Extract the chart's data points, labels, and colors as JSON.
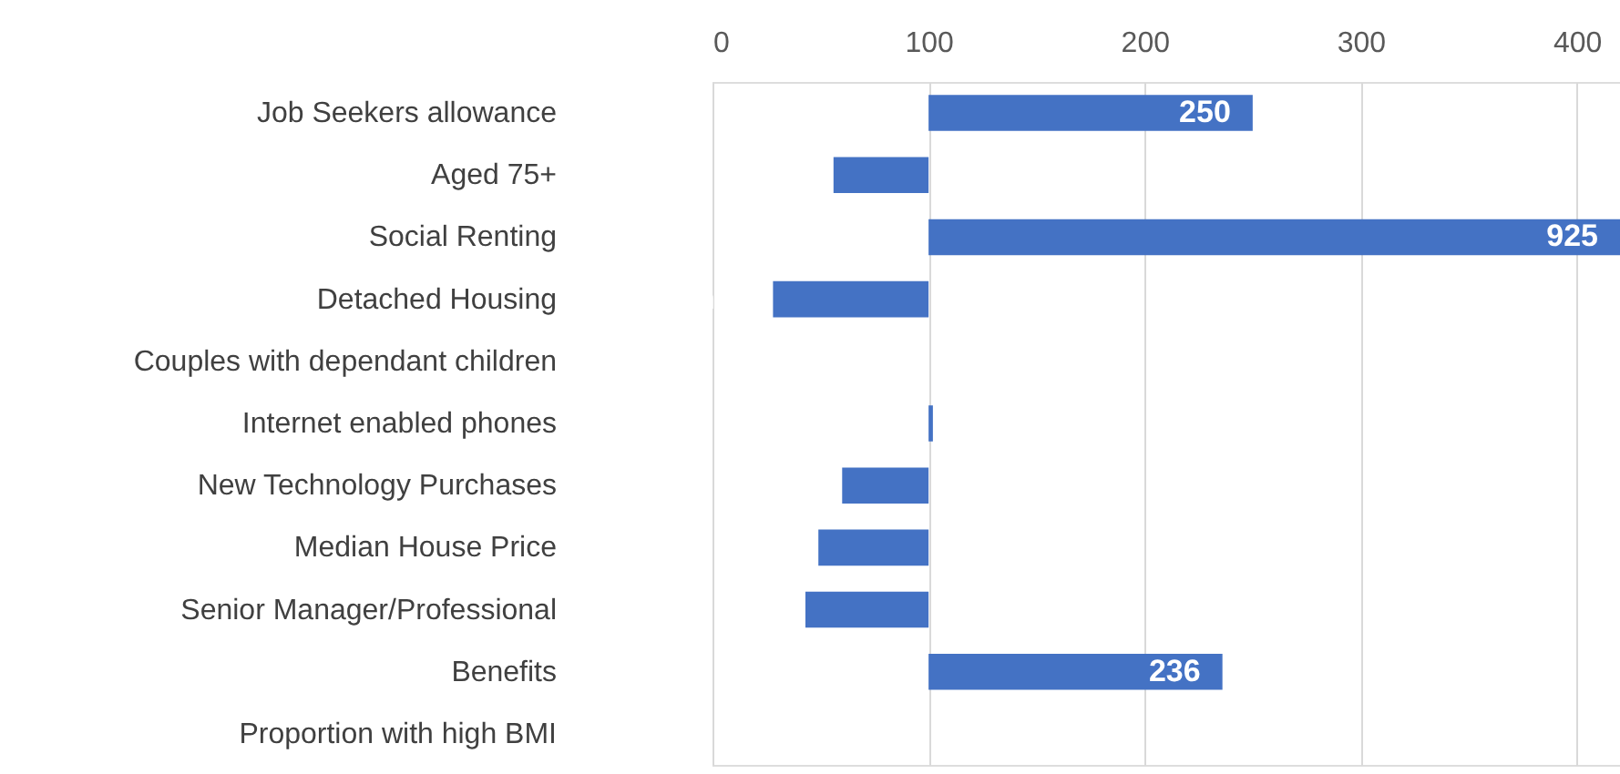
{
  "chart_data": {
    "type": "bar",
    "orientation": "horizontal",
    "categories": [
      "Job Seekers allowance",
      "Aged 75+",
      "Social Renting",
      "Detached Housing",
      "Couples with dependant children",
      "Internet enabled phones",
      "New Technology Purchases",
      "Median House Price",
      "Senior Manager/Professional",
      "Benefits",
      "Proportion with high BMI"
    ],
    "base": [
      100,
      100,
      100,
      100,
      null,
      100,
      100,
      100,
      100,
      100,
      null
    ],
    "values": [
      150,
      -44,
      825,
      -72,
      null,
      2,
      -40,
      -51,
      -57,
      136,
      null
    ],
    "value_labels": [
      "250",
      null,
      "925",
      null,
      null,
      null,
      null,
      null,
      null,
      "236",
      null
    ],
    "color": "#4472c4",
    "xlim": [
      0,
      420
    ],
    "xticks": [
      0,
      100,
      200,
      300,
      400
    ],
    "grid": "x"
  }
}
